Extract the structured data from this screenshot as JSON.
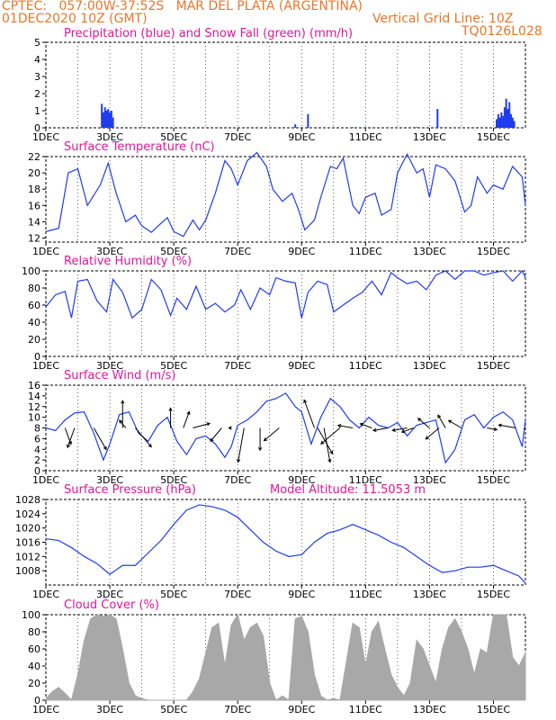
{
  "header": {
    "station": "CPTEC:   057:00W-37:52S   MAR DEL PLATA (ARGENTINA)",
    "date": "01DEC2020 10Z (GMT)",
    "grid_note": "Vertical Grid Line: 10Z",
    "code": "TQ0126L028"
  },
  "colors": {
    "title": "#e0169a",
    "header": "#e8762a",
    "line": "#1f3bef",
    "snow": "#19b219",
    "cloud": "#a8a8a8",
    "wind_arrow": "#000000"
  },
  "x_tick_labels": [
    "1DEC",
    "3DEC",
    "5DEC",
    "7DEC",
    "9DEC",
    "11DEC",
    "13DEC",
    "15DEC"
  ],
  "chart_data": [
    {
      "id": "precip",
      "type": "bar",
      "title": "Precipitation (blue) and Snow Fall (green) (mm/h)",
      "ylim": [
        0,
        5
      ],
      "yticks": [
        0,
        1,
        2,
        3,
        4,
        5
      ],
      "x_unit": "days since 01DEC2020 10Z",
      "series": [
        {
          "name": "Precipitation",
          "color": "#1f3bef",
          "points": [
            [
              1.75,
              1.4
            ],
            [
              1.8,
              0.9
            ],
            [
              1.85,
              1.2
            ],
            [
              1.9,
              1.0
            ],
            [
              1.95,
              1.1
            ],
            [
              2.0,
              0.9
            ],
            [
              2.05,
              1.0
            ],
            [
              2.1,
              0.6
            ],
            [
              7.8,
              0.2
            ],
            [
              8.2,
              0.8
            ],
            [
              12.25,
              1.1
            ],
            [
              14.1,
              0.5
            ],
            [
              14.15,
              0.8
            ],
            [
              14.2,
              0.6
            ],
            [
              14.25,
              0.9
            ],
            [
              14.3,
              0.7
            ],
            [
              14.35,
              1.2
            ],
            [
              14.4,
              1.7
            ],
            [
              14.45,
              1.1
            ],
            [
              14.5,
              1.5
            ],
            [
              14.55,
              0.8
            ],
            [
              14.6,
              0.6
            ],
            [
              14.65,
              0.4
            ]
          ]
        },
        {
          "name": "Snow Fall",
          "color": "#19b219",
          "points": [
            [
              3.0,
              0.05
            ],
            [
              9.6,
              0.05
            ],
            [
              10.0,
              0.05
            ],
            [
              11.6,
              0.05
            ]
          ]
        }
      ]
    },
    {
      "id": "temp",
      "type": "line",
      "title": "Surface Temperature (nC)",
      "ylim": [
        11.5,
        22
      ],
      "yticks": [
        12,
        14,
        16,
        18,
        20,
        22
      ],
      "x": [
        0,
        0.4,
        0.7,
        1.0,
        1.3,
        1.7,
        1.95,
        2.2,
        2.5,
        2.8,
        3.0,
        3.3,
        3.6,
        3.8,
        4.0,
        4.3,
        4.6,
        4.8,
        5.0,
        5.3,
        5.6,
        5.8,
        6.0,
        6.3,
        6.6,
        6.9,
        7.1,
        7.4,
        7.7,
        7.9,
        8.1,
        8.4,
        8.6,
        8.9,
        9.1,
        9.3,
        9.6,
        9.8,
        10.0,
        10.3,
        10.5,
        10.8,
        11.0,
        11.3,
        11.6,
        11.8,
        12.0,
        12.2,
        12.5,
        12.8,
        13.1,
        13.3,
        13.5,
        13.8,
        14.0,
        14.3,
        14.6,
        14.9,
        15.0
      ],
      "values": [
        12.8,
        13.2,
        20.0,
        20.5,
        16.0,
        18.5,
        21.2,
        17.5,
        14.0,
        14.8,
        13.5,
        12.7,
        13.8,
        14.5,
        12.8,
        12.2,
        14.2,
        13.0,
        14.2,
        17.5,
        21.5,
        20.5,
        18.5,
        21.5,
        22.5,
        20.8,
        18.0,
        16.5,
        17.5,
        15.5,
        13.0,
        14.2,
        17.0,
        20.8,
        20.5,
        21.8,
        16.0,
        15.0,
        17.0,
        17.5,
        14.8,
        15.5,
        20.0,
        22.3,
        20.0,
        20.5,
        17.0,
        21.0,
        20.5,
        19.0,
        15.2,
        16.0,
        19.5,
        17.5,
        18.5,
        18.0,
        20.8,
        19.5,
        16.0
      ]
    },
    {
      "id": "rh",
      "type": "line",
      "title": "Relative Humidity (%)",
      "ylim": [
        0,
        100
      ],
      "yticks": [
        0,
        20,
        40,
        60,
        80,
        100
      ],
      "x": [
        0,
        0.3,
        0.6,
        0.8,
        1.0,
        1.3,
        1.6,
        1.9,
        2.1,
        2.4,
        2.7,
        3.0,
        3.3,
        3.6,
        3.9,
        4.1,
        4.4,
        4.7,
        5.0,
        5.3,
        5.6,
        5.9,
        6.1,
        6.4,
        6.7,
        7.0,
        7.2,
        7.5,
        7.8,
        8.0,
        8.2,
        8.5,
        8.8,
        9.0,
        9.3,
        9.6,
        9.9,
        10.2,
        10.5,
        10.8,
        11.0,
        11.3,
        11.6,
        11.9,
        12.2,
        12.5,
        12.8,
        13.1,
        13.4,
        13.7,
        14.0,
        14.3,
        14.6,
        14.9,
        15.0
      ],
      "values": [
        58,
        72,
        76,
        45,
        88,
        90,
        65,
        52,
        90,
        75,
        45,
        55,
        90,
        78,
        48,
        68,
        55,
        82,
        55,
        62,
        52,
        60,
        78,
        55,
        80,
        72,
        92,
        88,
        86,
        45,
        75,
        88,
        84,
        52,
        60,
        68,
        75,
        88,
        72,
        98,
        92,
        85,
        88,
        78,
        95,
        100,
        90,
        100,
        100,
        95,
        98,
        100,
        88,
        100,
        92
      ]
    },
    {
      "id": "wind",
      "type": "line",
      "title": "Surface Wind (m/s)",
      "ylim": [
        0,
        16
      ],
      "yticks": [
        0,
        2,
        4,
        6,
        8,
        10,
        12,
        14,
        16
      ],
      "x": [
        0,
        0.3,
        0.6,
        0.9,
        1.2,
        1.5,
        1.8,
        2.0,
        2.3,
        2.6,
        2.9,
        3.2,
        3.5,
        3.8,
        4.1,
        4.4,
        4.7,
        5.0,
        5.3,
        5.6,
        5.8,
        6.0,
        6.3,
        6.6,
        6.9,
        7.2,
        7.5,
        7.8,
        8.0,
        8.3,
        8.6,
        8.9,
        9.2,
        9.5,
        9.8,
        10.1,
        10.4,
        10.7,
        11.0,
        11.3,
        11.6,
        11.9,
        12.2,
        12.5,
        12.8,
        13.1,
        13.4,
        13.7,
        14.0,
        14.3,
        14.6,
        14.9,
        15.0
      ],
      "values": [
        8.0,
        7.5,
        9.5,
        10.8,
        11.0,
        7.0,
        2.0,
        5.0,
        10.5,
        11.0,
        7.0,
        5.5,
        8.5,
        10.0,
        5.5,
        3.0,
        6.0,
        6.5,
        5.0,
        2.5,
        4.5,
        8.5,
        9.5,
        11.0,
        13.0,
        13.5,
        14.5,
        12.0,
        11.0,
        5.0,
        10.0,
        13.5,
        12.0,
        9.5,
        8.0,
        10.0,
        8.5,
        8.0,
        9.0,
        6.5,
        8.5,
        9.0,
        9.5,
        1.5,
        4.0,
        9.5,
        10.5,
        8.0,
        10.0,
        11.0,
        9.5,
        4.5,
        9.5
      ],
      "arrows_units": "start day, direction (deg, math angle) and length in m/s scale",
      "arrows": [
        [
          0.6,
          -70,
          3.5
        ],
        [
          0.9,
          -110,
          4.2
        ],
        [
          1.5,
          -60,
          5.0
        ],
        [
          2.4,
          90,
          5.5
        ],
        [
          2.5,
          130,
          2.0
        ],
        [
          2.8,
          -50,
          5.0
        ],
        [
          3.9,
          90,
          4.0
        ],
        [
          4.3,
          70,
          3.5
        ],
        [
          4.6,
          15,
          3.5
        ],
        [
          5.5,
          -130,
          3.5
        ],
        [
          5.8,
          180,
          0.5
        ],
        [
          6.2,
          -100,
          7.0
        ],
        [
          6.7,
          -90,
          4.5
        ],
        [
          7.3,
          -140,
          4.0
        ],
        [
          8.4,
          110,
          6.0
        ],
        [
          8.5,
          -60,
          6.0
        ],
        [
          8.7,
          -80,
          7.0
        ],
        [
          9.2,
          -140,
          5.0
        ],
        [
          9.6,
          170,
          3.0
        ],
        [
          10.2,
          -200,
          2.5
        ],
        [
          10.7,
          -170,
          3.0
        ],
        [
          11.3,
          -170,
          3.0
        ],
        [
          11.5,
          -160,
          2.5
        ],
        [
          12.0,
          140,
          3.0
        ],
        [
          12.3,
          -140,
          3.5
        ],
        [
          12.5,
          120,
          3.0
        ],
        [
          13.0,
          150,
          3.0
        ],
        [
          13.8,
          -10,
          2.0
        ],
        [
          14.7,
          170,
          3.5
        ]
      ]
    },
    {
      "id": "pressure",
      "type": "line",
      "title": "Surface Pressure (hPa)",
      "subtitle": "Model Altitude: 11.5053 m",
      "ylim": [
        1004,
        1028
      ],
      "yticks": [
        1008,
        1012,
        1016,
        1020,
        1024,
        1028
      ],
      "x": [
        0,
        0.4,
        0.8,
        1.2,
        1.6,
        2.0,
        2.4,
        2.8,
        3.2,
        3.6,
        4.0,
        4.4,
        4.8,
        5.2,
        5.6,
        6.0,
        6.4,
        6.8,
        7.2,
        7.6,
        8.0,
        8.4,
        8.8,
        9.2,
        9.6,
        10.0,
        10.4,
        10.8,
        11.2,
        11.6,
        12.0,
        12.4,
        12.8,
        13.2,
        13.6,
        14.0,
        14.4,
        14.8,
        15.0
      ],
      "values": [
        1017,
        1016.5,
        1014.5,
        1012,
        1010,
        1007,
        1009.5,
        1009.5,
        1013,
        1016.5,
        1021,
        1025,
        1026.5,
        1026,
        1025,
        1023,
        1019.5,
        1016,
        1013.5,
        1012,
        1012.5,
        1016,
        1018.5,
        1019.5,
        1021,
        1019.5,
        1018,
        1016,
        1014.5,
        1012,
        1009.5,
        1007.5,
        1008,
        1009,
        1009,
        1009.5,
        1008,
        1006.5,
        1004.5
      ]
    },
    {
      "id": "cloud",
      "type": "area",
      "title": "Cloud Cover (%)",
      "ylim": [
        0,
        100
      ],
      "yticks": [
        0,
        20,
        40,
        60,
        80,
        100
      ],
      "x": [
        0,
        0.2,
        0.4,
        0.6,
        0.8,
        1.0,
        1.2,
        1.4,
        1.6,
        1.8,
        2.0,
        2.2,
        2.4,
        2.6,
        2.8,
        3.0,
        3.2,
        3.4,
        3.6,
        3.8,
        4.0,
        4.2,
        4.4,
        4.6,
        4.8,
        5.0,
        5.2,
        5.4,
        5.6,
        5.8,
        6.0,
        6.2,
        6.4,
        6.6,
        6.8,
        7.0,
        7.2,
        7.4,
        7.6,
        7.8,
        8.0,
        8.2,
        8.4,
        8.6,
        8.8,
        9.0,
        9.2,
        9.4,
        9.6,
        9.8,
        10.0,
        10.2,
        10.4,
        10.6,
        10.8,
        11.0,
        11.2,
        11.4,
        11.6,
        11.8,
        12.0,
        12.2,
        12.4,
        12.6,
        12.8,
        13.0,
        13.2,
        13.4,
        13.6,
        13.8,
        14.0,
        14.2,
        14.4,
        14.6,
        14.8,
        15.0
      ],
      "values": [
        2,
        10,
        15,
        8,
        0,
        30,
        70,
        95,
        100,
        98,
        100,
        95,
        60,
        20,
        5,
        2,
        0,
        0,
        0,
        0,
        0,
        0,
        0,
        10,
        25,
        55,
        85,
        90,
        40,
        88,
        100,
        70,
        85,
        90,
        75,
        20,
        0,
        5,
        0,
        95,
        98,
        80,
        30,
        5,
        0,
        2,
        0,
        45,
        90,
        85,
        40,
        80,
        92,
        60,
        30,
        15,
        5,
        20,
        70,
        60,
        40,
        20,
        60,
        85,
        95,
        80,
        60,
        30,
        60,
        55,
        100,
        100,
        100,
        50,
        40,
        55
      ]
    }
  ]
}
